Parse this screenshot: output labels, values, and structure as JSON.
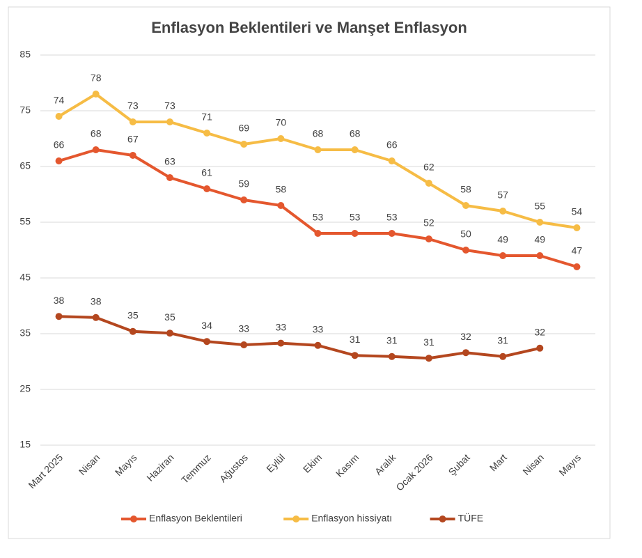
{
  "chart_data": {
    "type": "line",
    "title": "Enflasyon Beklentileri ve Manşet Enflasyon",
    "categories": [
      "Mart 2025",
      "Nisan",
      "Mayıs",
      "Haziran",
      "Temmuz",
      "Ağustos",
      "Eylül",
      "Ekim",
      "Kasım",
      "Aralık",
      "Ocak 2026",
      "Şubat",
      "Mart",
      "Nisan",
      "Mayıs"
    ],
    "series": [
      {
        "name": "Enflasyon Beklentileri",
        "color": "#e4572e",
        "values": [
          66,
          68,
          67,
          63,
          61,
          59,
          58,
          53,
          53,
          53,
          52,
          50,
          49,
          49,
          47
        ]
      },
      {
        "name": "Enflasyon hissiyatı",
        "color": "#f6bc45",
        "values": [
          74,
          78,
          73,
          73,
          71,
          69,
          70,
          68,
          68,
          66,
          62,
          58,
          57,
          55,
          54
        ]
      },
      {
        "name": "TÜFE",
        "color": "#b4471f",
        "values": [
          38.1,
          37.9,
          35.4,
          35.1,
          33.6,
          33.0,
          33.3,
          32.9,
          31.1,
          30.9,
          30.6,
          31.6,
          30.9,
          32.4,
          null
        ],
        "value_labels": [
          "38",
          "38",
          "35",
          "35",
          "34",
          "33",
          "33",
          "33",
          "31",
          "31",
          "31",
          "32",
          "31",
          "32",
          null
        ]
      }
    ],
    "ylim": [
      15,
      85
    ],
    "yticks": [
      15,
      25,
      35,
      45,
      55,
      65,
      75,
      85
    ],
    "grid": true,
    "legend": "bottom"
  }
}
